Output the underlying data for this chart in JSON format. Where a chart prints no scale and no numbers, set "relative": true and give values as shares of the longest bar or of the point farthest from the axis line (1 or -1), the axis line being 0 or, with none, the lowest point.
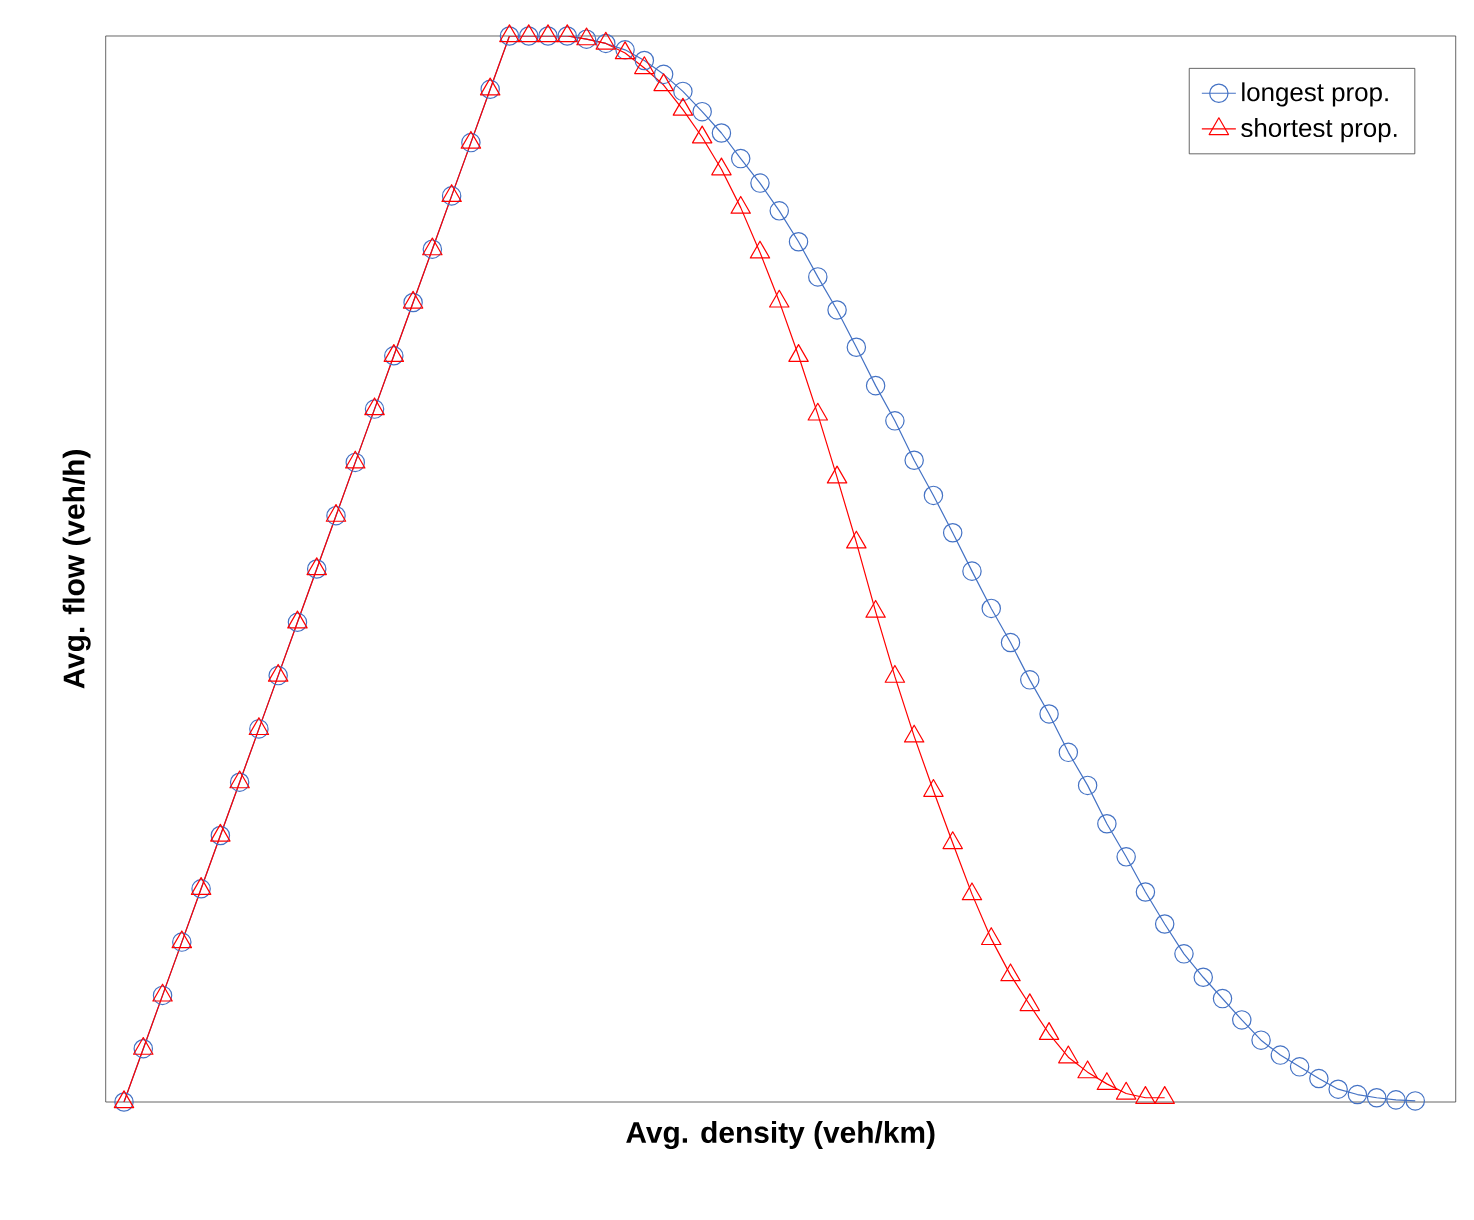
{
  "chart_data": {
    "type": "line",
    "xlabel": "Avg. density (veh/km)",
    "ylabel": "Avg. flow (veh/h)",
    "relative": true,
    "legend": "top right",
    "categories": [
      null,
      null,
      null,
      null,
      null,
      null,
      null,
      null,
      null,
      null,
      null,
      null,
      null,
      null,
      null,
      null,
      null,
      null,
      null,
      null,
      null,
      null,
      null,
      null,
      null,
      null,
      null,
      null,
      null,
      null,
      null,
      null,
      null,
      null,
      null,
      null,
      null,
      null,
      null,
      null,
      null,
      null,
      null,
      null,
      null,
      null,
      null,
      null,
      null,
      null,
      null,
      null,
      null,
      null,
      null,
      null,
      null,
      null,
      null,
      null,
      null,
      null,
      null,
      null,
      null,
      null,
      null,
      null
    ],
    "series": [
      {
        "name": "longest prop.",
        "color": "#4472c4",
        "marker": "circle",
        "values": [
          0,
          0.05,
          0.1,
          0.15,
          0.2,
          0.25,
          0.3,
          0.35,
          0.4,
          0.45,
          0.5,
          0.55,
          0.6,
          0.65,
          0.7,
          0.75,
          0.8,
          0.85,
          0.9,
          0.95,
          1.0,
          1.0,
          1.0,
          1.0,
          0.997,
          0.993,
          0.987,
          0.977,
          0.964,
          0.948,
          0.929,
          0.909,
          0.885,
          0.862,
          0.836,
          0.807,
          0.774,
          0.743,
          0.708,
          0.672,
          0.639,
          0.602,
          0.569,
          0.534,
          0.498,
          0.463,
          0.431,
          0.396,
          0.364,
          0.328,
          0.297,
          0.261,
          0.23,
          0.197,
          0.167,
          0.139,
          0.117,
          0.097,
          0.077,
          0.058,
          0.044,
          0.033,
          0.022,
          0.012,
          0.007,
          0.004,
          0.002,
          0.001
        ]
      },
      {
        "name": "shortest prop.",
        "color": "#ff0000",
        "marker": "triangle",
        "values": [
          0,
          0.05,
          0.1,
          0.15,
          0.2,
          0.25,
          0.3,
          0.35,
          0.4,
          0.45,
          0.5,
          0.55,
          0.6,
          0.65,
          0.7,
          0.75,
          0.8,
          0.85,
          0.9,
          0.95,
          1.0,
          1.0,
          1.0,
          1.0,
          0.997,
          0.993,
          0.984,
          0.97,
          0.954,
          0.931,
          0.905,
          0.875,
          0.839,
          0.797,
          0.751,
          0.7,
          0.645,
          0.586,
          0.525,
          0.46,
          0.399,
          0.343,
          0.292,
          0.243,
          0.195,
          0.153,
          0.119,
          0.091,
          0.064,
          0.042,
          0.028,
          0.017,
          0.008,
          0.004,
          0.004,
          null,
          null,
          null,
          null,
          null,
          null,
          null,
          null,
          null,
          null,
          null,
          null,
          null
        ]
      }
    ]
  }
}
